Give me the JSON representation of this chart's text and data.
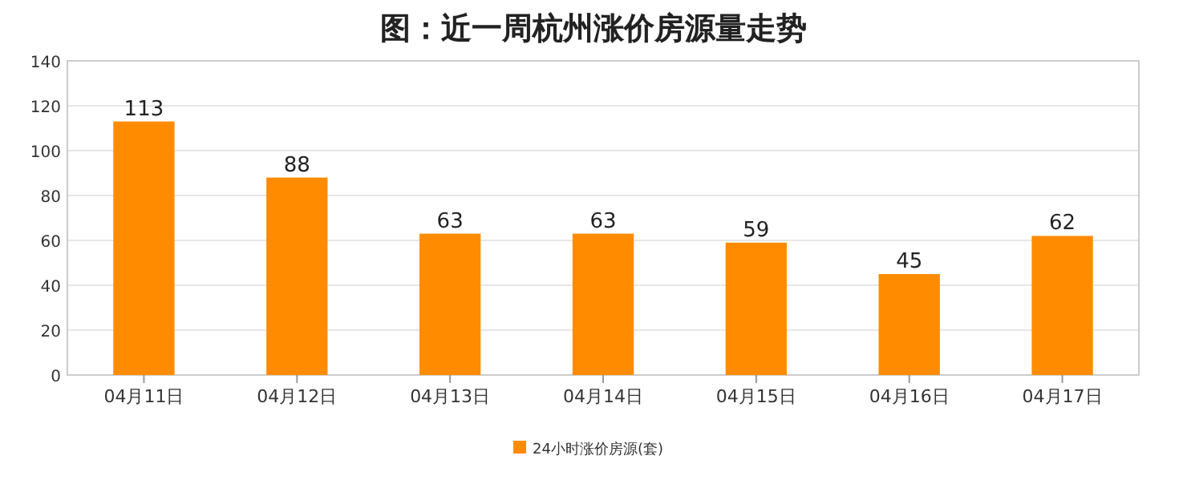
{
  "chart_data": {
    "type": "bar",
    "title": "图：近一周杭州涨价房源量走势",
    "categories": [
      "04月11日",
      "04月12日",
      "04月13日",
      "04月14日",
      "04月15日",
      "04月16日",
      "04月17日"
    ],
    "series": [
      {
        "name": "24小时涨价房源(套)",
        "color": "#ff8c00",
        "values": [
          113,
          88,
          63,
          63,
          59,
          45,
          62
        ]
      }
    ],
    "ylim": [
      0,
      140
    ],
    "yticks": [
      0,
      20,
      40,
      60,
      80,
      100,
      120,
      140
    ],
    "grid": "y",
    "legend": "bottom",
    "data_labels": true
  }
}
